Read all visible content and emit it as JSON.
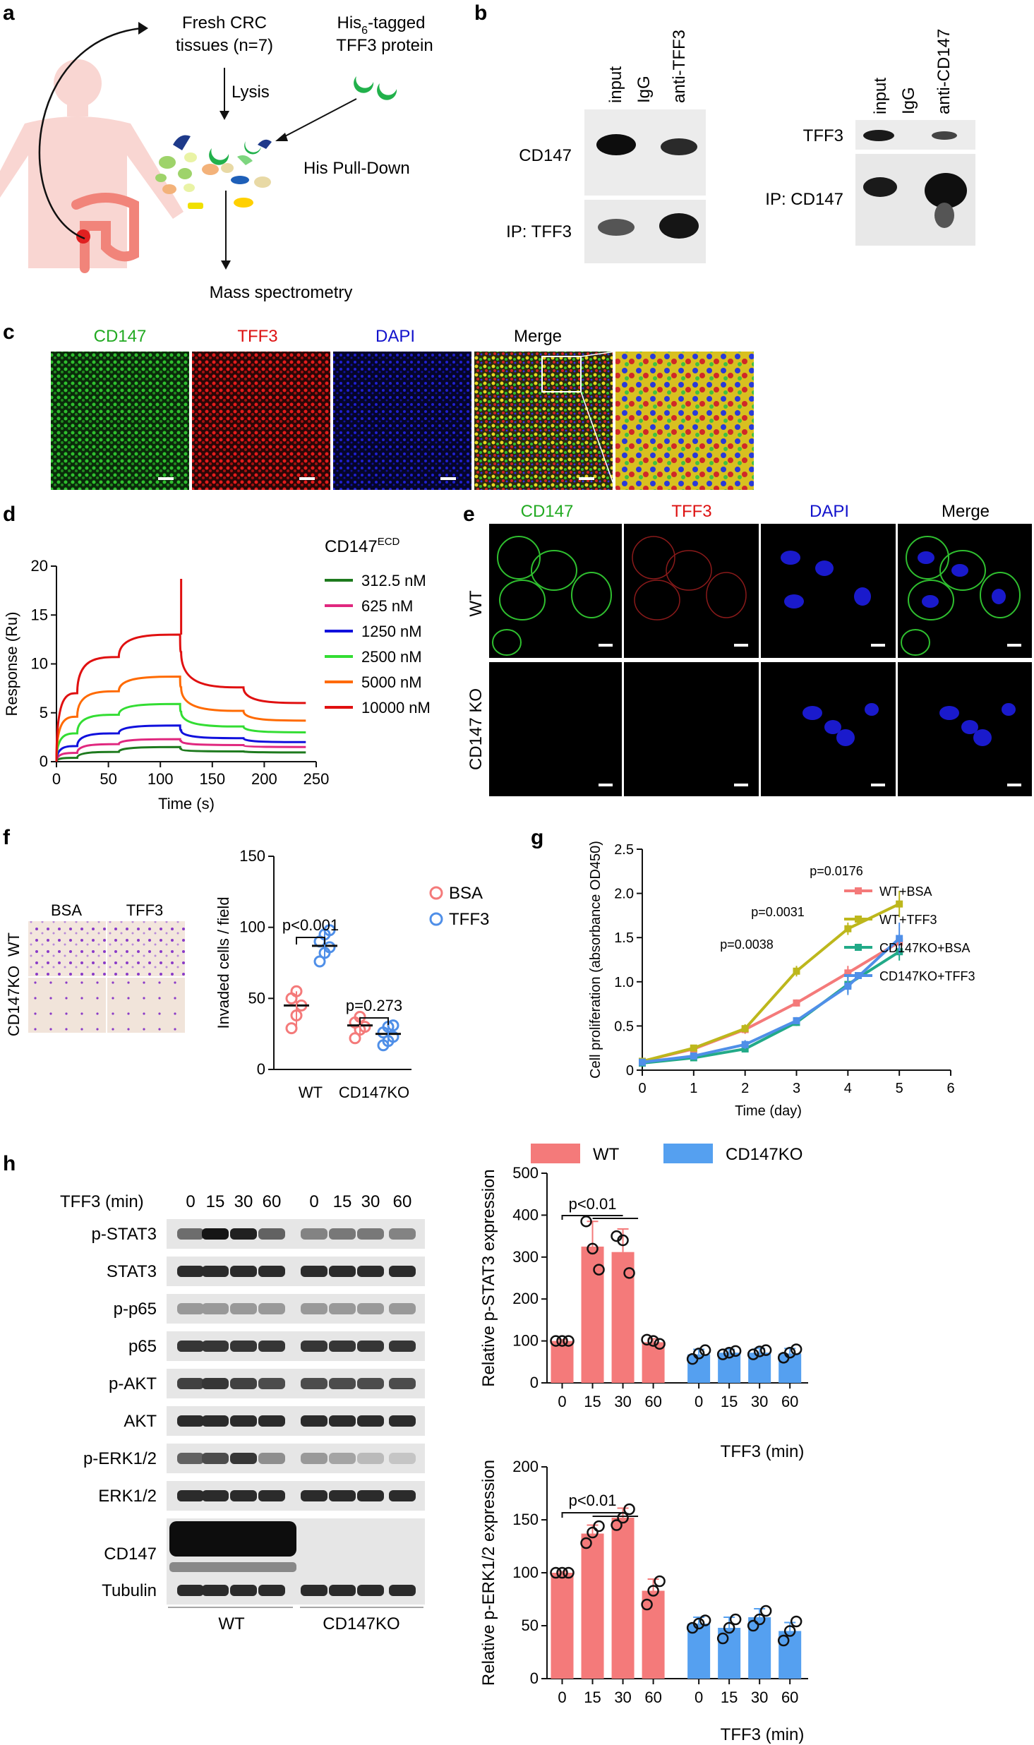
{
  "panel_letters": {
    "a": "a",
    "b": "b",
    "c": "c",
    "d": "d",
    "e": "e",
    "f": "f",
    "g": "g",
    "h": "h"
  },
  "a": {
    "tissues_line1": "Fresh CRC",
    "tissues_line2": "tissues (n=7)",
    "his_line1_pre": "His",
    "his_line1_sub": "6",
    "his_line1_post": "-tagged",
    "his_line2": "TFF3 protein",
    "lysis": "Lysis",
    "pulldown": "His Pull-Down",
    "mass_spec": "Mass spectrometry"
  },
  "b": {
    "left_lanes": [
      "input",
      "IgG",
      "anti-TFF3"
    ],
    "left_top": "CD147",
    "left_bottom": "IP: TFF3",
    "right_lanes": [
      "input",
      "IgG",
      "anti-CD147"
    ],
    "right_top": "TFF3",
    "right_bottom": "IP: CD147"
  },
  "c": {
    "labels": [
      "CD147",
      "TFF3",
      "DAPI",
      "Merge"
    ],
    "colors": [
      "#22aa22",
      "#dd1111",
      "#1111cc",
      "#111111"
    ]
  },
  "e": {
    "labels": [
      "CD147",
      "TFF3",
      "DAPI",
      "Merge"
    ],
    "rows": [
      "WT",
      "CD147 KO"
    ]
  },
  "d": {
    "legend_title": "CD147",
    "legend_title_sup": "ECD",
    "ylabel": "Response (Ru)",
    "xlabel": "Time (s)"
  },
  "f": {
    "img_cols": [
      "BSA",
      "TFF3"
    ],
    "img_rows": [
      "WT",
      "CD147KO"
    ],
    "ylabel": "Invaded cells / field",
    "legend": [
      "BSA",
      "TFF3"
    ],
    "p1": "p<0.001",
    "p2": "p=0.273"
  },
  "g": {
    "ylabel": "Cell proliferation (absorbance OD450)",
    "xlabel": "Time (day)",
    "p_labels": [
      "p=0.0038",
      "p=0.0031",
      "p=0.0176"
    ]
  },
  "h": {
    "blot_header": "TFF3 (min)",
    "blot_times": [
      "0",
      "15",
      "30",
      "60",
      "0",
      "15",
      "30",
      "60"
    ],
    "blot_rows": [
      "p-STAT3",
      "STAT3",
      "p-p65",
      "p65",
      "p-AKT",
      "AKT",
      "p-ERK1/2",
      "ERK1/2",
      "CD147",
      "Tubulin"
    ],
    "groups": [
      "WT",
      "CD147KO"
    ],
    "legend": [
      "WT",
      "CD147KO"
    ],
    "top_ylabel": "Relative p-STAT3 expression",
    "bottom_ylabel": "Relative p-ERK1/2 expression",
    "xlabel": "TFF3 (min)",
    "p_top": "p<0.01",
    "p_bottom": "p<0.01"
  },
  "chart_data": [
    {
      "id": "d",
      "type": "line",
      "xlabel": "Time (s)",
      "ylabel": "Response (Ru)",
      "xlim": [
        0,
        250
      ],
      "ylim": [
        0,
        20
      ],
      "xticks": [
        0,
        50,
        100,
        150,
        200,
        250
      ],
      "yticks": [
        0,
        5,
        10,
        15,
        20
      ],
      "legend_title": "CD147ECD",
      "series": [
        {
          "name": "312.5 nM",
          "color": "#1e7a1e",
          "x": [
            0,
            20,
            60,
            119,
            120,
            180,
            240
          ],
          "y": [
            0,
            0.4,
            1.0,
            1.5,
            1.3,
            1.05,
            0.95
          ]
        },
        {
          "name": "625 nM",
          "color": "#e0287f",
          "x": [
            0,
            20,
            60,
            119,
            120,
            180,
            240
          ],
          "y": [
            0,
            0.9,
            1.8,
            2.3,
            2.1,
            1.7,
            1.5
          ]
        },
        {
          "name": "1250 nM",
          "color": "#1010dd",
          "x": [
            0,
            20,
            60,
            119,
            120,
            180,
            240
          ],
          "y": [
            0,
            1.6,
            2.9,
            3.7,
            3.2,
            2.4,
            2.0
          ]
        },
        {
          "name": "2500 nM",
          "color": "#33dd33",
          "x": [
            0,
            20,
            60,
            119,
            120,
            180,
            240
          ],
          "y": [
            0,
            2.9,
            4.8,
            5.9,
            5.1,
            3.6,
            3.0
          ]
        },
        {
          "name": "5000 nM",
          "color": "#ff6a00",
          "x": [
            0,
            20,
            60,
            119,
            120,
            180,
            240
          ],
          "y": [
            0,
            4.6,
            7.2,
            8.7,
            7.6,
            5.2,
            4.2
          ]
        },
        {
          "name": "10000 nM",
          "color": "#e01010",
          "x": [
            0,
            20,
            60,
            119,
            120,
            180,
            240
          ],
          "y": [
            0,
            7.0,
            10.7,
            13.0,
            11.2,
            7.6,
            6.0
          ]
        }
      ],
      "spike": {
        "x": 120,
        "y": 18.7
      }
    },
    {
      "id": "f",
      "type": "scatter",
      "categories": [
        "WT",
        "CD147KO"
      ],
      "ylabel": "Invaded cells / field",
      "ylim": [
        0,
        150
      ],
      "yticks": [
        0,
        50,
        100,
        150
      ],
      "series": [
        {
          "name": "BSA",
          "color": "#f47a7a",
          "values": [
            [
              29,
              38,
              45,
              50,
              55
            ],
            [
              22,
              28,
              30,
              33,
              37
            ]
          ],
          "mean": [
            45,
            31
          ]
        },
        {
          "name": "TFF3",
          "color": "#4f8fe8",
          "values": [
            [
              76,
              82,
              86,
              90,
              95,
              98
            ],
            [
              17,
              20,
              23,
              26,
              30,
              31
            ]
          ],
          "mean": [
            87,
            25
          ]
        }
      ]
    },
    {
      "id": "g",
      "type": "line",
      "xlabel": "Time (day)",
      "ylabel": "Cell proliferation (absorbance OD450)",
      "xlim": [
        0,
        6
      ],
      "ylim": [
        0,
        2.5
      ],
      "xticks": [
        0,
        1,
        2,
        3,
        4,
        5,
        6
      ],
      "yticks": [
        0,
        0.5,
        1.0,
        1.5,
        2.0,
        2.5
      ],
      "x": [
        0,
        1,
        2,
        3,
        4,
        5
      ],
      "series": [
        {
          "name": "WT+BSA",
          "color": "#f47a7a",
          "values": [
            0.1,
            0.24,
            0.46,
            0.76,
            1.1,
            1.45
          ],
          "err": [
            0.02,
            0.03,
            0.05,
            0.04,
            0.08,
            0.07
          ]
        },
        {
          "name": "WT+TFF3",
          "color": "#bdb71c",
          "values": [
            0.1,
            0.25,
            0.47,
            1.12,
            1.6,
            1.88
          ],
          "err": [
            0.02,
            0.03,
            0.05,
            0.06,
            0.07,
            0.15
          ]
        },
        {
          "name": "CD147KO+BSA",
          "color": "#22aa88",
          "values": [
            0.08,
            0.14,
            0.24,
            0.54,
            0.97,
            1.34
          ],
          "err": [
            0.02,
            0.02,
            0.04,
            0.04,
            0.1,
            0.1
          ]
        },
        {
          "name": "CD147KO+TFF3",
          "color": "#4f8fe8",
          "values": [
            0.09,
            0.16,
            0.29,
            0.56,
            0.95,
            1.49
          ],
          "err": [
            0.02,
            0.02,
            0.05,
            0.04,
            0.1,
            0.18
          ]
        }
      ]
    },
    {
      "id": "h-top",
      "type": "bar",
      "categories": [
        "0",
        "15",
        "30",
        "60",
        "0",
        "15",
        "30",
        "60"
      ],
      "xlabel": "TFF3 (min)",
      "ylabel": "Relative p-STAT3 expression",
      "ylim": [
        0,
        500
      ],
      "yticks": [
        0,
        100,
        200,
        300,
        400,
        500
      ],
      "groups": [
        {
          "name": "WT",
          "color": "#f47a7a",
          "values": [
            100,
            325,
            312,
            97
          ],
          "err": [
            3,
            60,
            55,
            8
          ],
          "points": [
            [
              100,
              100,
              100
            ],
            [
              385,
              320,
              270
            ],
            [
              350,
              340,
              262
            ],
            [
              103,
              100,
              93
            ]
          ]
        },
        {
          "name": "CD147KO",
          "color": "#55a0f0",
          "values": [
            68,
            72,
            72,
            70
          ],
          "err": [
            12,
            8,
            10,
            12
          ],
          "points": [
            [
              57,
              70,
              78
            ],
            [
              68,
              72,
              76
            ],
            [
              68,
              75,
              78
            ],
            [
              60,
              72,
              80
            ]
          ]
        }
      ]
    },
    {
      "id": "h-bottom",
      "type": "bar",
      "categories": [
        "0",
        "15",
        "30",
        "60",
        "0",
        "15",
        "30",
        "60"
      ],
      "xlabel": "TFF3 (min)",
      "ylabel": "Relative p-ERK1/2 expression",
      "ylim": [
        0,
        200
      ],
      "yticks": [
        0,
        50,
        100,
        150,
        200
      ],
      "groups": [
        {
          "name": "WT",
          "color": "#f47a7a",
          "values": [
            100,
            137,
            152,
            83
          ],
          "err": [
            1,
            8,
            9,
            11
          ],
          "points": [
            [
              100,
              100,
              100
            ],
            [
              128,
              138,
              144
            ],
            [
              145,
              152,
              160
            ],
            [
              70,
              83,
              92
            ]
          ]
        },
        {
          "name": "CD147KO",
          "color": "#55a0f0",
          "values": [
            52,
            48,
            58,
            45
          ],
          "err": [
            6,
            10,
            8,
            8
          ],
          "points": [
            [
              48,
              52,
              55
            ],
            [
              38,
              48,
              56
            ],
            [
              50,
              56,
              64
            ],
            [
              36,
              45,
              54
            ]
          ]
        }
      ]
    }
  ]
}
